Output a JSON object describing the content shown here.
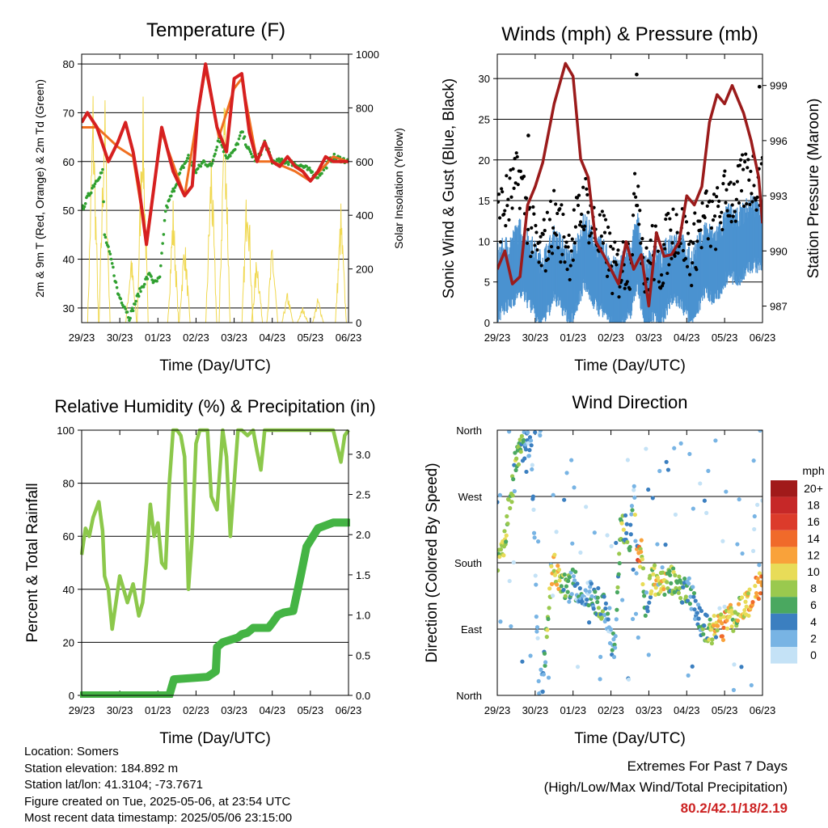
{
  "footer": {
    "location": "Location: Somers",
    "elevation": "Station elevation: 184.892 m",
    "latlon": "Station lat/lon: 41.3104; -73.7671",
    "created": "Figure created on Tue, 2025-05-06, at 23:54 UTC",
    "latest": "Most recent data timestamp: 2025/05/06 23:15:00"
  },
  "extremes": {
    "title": "Extremes For Past 7 Days",
    "subtitle": "(High/Low/Max Wind/Total Precipitation)",
    "values": "80.2/42.1/18/2.19",
    "color": "#cc2222"
  },
  "chart_data": [
    {
      "type": "line",
      "title": "Temperature (F)",
      "xlabel": "Time (Day/UTC)",
      "ylabel": "2m & 9m T (Red, Orange) & 2m Td (Green)",
      "y2label": "Solar Insolation (Yellow)",
      "x_ticks": [
        "29/23",
        "30/23",
        "01/23",
        "02/23",
        "03/23",
        "04/23",
        "05/23",
        "06/23"
      ],
      "ylim": [
        27,
        82
      ],
      "yticks": [
        30,
        40,
        50,
        60,
        70,
        80
      ],
      "y2lim": [
        0,
        1000
      ],
      "y2ticks": [
        0,
        200,
        400,
        600,
        800,
        1000
      ],
      "series": [
        {
          "name": "2m T",
          "color": "#d62020",
          "x": [
            0,
            0.15,
            0.4,
            0.7,
            0.95,
            1.15,
            1.35,
            1.5,
            1.7,
            1.9,
            2.1,
            2.4,
            2.7,
            2.9,
            3.05,
            3.25,
            3.55,
            3.8,
            4.0,
            4.2,
            4.4,
            4.6,
            4.8,
            5.0,
            5.2,
            5.4,
            5.6,
            5.8,
            6.0,
            6.2,
            6.4,
            6.6,
            7.0
          ],
          "y": [
            68,
            70,
            67,
            60,
            64,
            68,
            62,
            55,
            43,
            55,
            67,
            58,
            53,
            55,
            70,
            80,
            67,
            62,
            77,
            78,
            66,
            60,
            64,
            60,
            59,
            61,
            59,
            58,
            56,
            58,
            61,
            60,
            60
          ]
        },
        {
          "name": "9m T",
          "color": "#f07020",
          "x": [
            0,
            0.4,
            0.95,
            1.35,
            1.7,
            2.1,
            2.7,
            3.05,
            3.25,
            3.6,
            4.0,
            4.2,
            4.6,
            5.0,
            5.6,
            6.0,
            6.6,
            7.0
          ],
          "y": [
            67,
            67,
            63,
            61,
            44,
            66,
            53,
            70,
            79,
            65,
            75,
            77,
            60,
            60,
            58,
            56,
            61,
            60
          ]
        },
        {
          "name": "2m Td",
          "color": "#30a030",
          "x": [
            0,
            0.3,
            0.45,
            0.55,
            0.6,
            0.8,
            0.95,
            1.15,
            1.25,
            1.5,
            1.7,
            1.8,
            1.9,
            2.05,
            2.2,
            2.4,
            2.6,
            2.8,
            3.0,
            3.2,
            3.4,
            3.6,
            3.8,
            4.0,
            4.2,
            4.4,
            4.6,
            4.8,
            5.0,
            5.4,
            5.8,
            6.2,
            6.6,
            7.0
          ],
          "y": [
            50,
            55,
            57,
            58,
            45,
            39,
            33,
            30,
            28,
            33,
            36,
            37,
            35,
            36,
            50,
            54,
            58,
            61,
            58,
            60,
            59,
            65,
            61,
            62,
            66,
            62,
            60,
            64,
            60,
            60,
            59,
            57,
            61,
            60
          ]
        },
        {
          "name": "Solar Insolation",
          "color": "#f0d850",
          "axis": "y2",
          "peaks_x": [
            0.3,
            0.6,
            1.3,
            1.6,
            2.4,
            2.7,
            3.4,
            3.75,
            4.35,
            4.6,
            5.0,
            5.4,
            5.8,
            6.2,
            6.8
          ],
          "peaks_y": [
            920,
            930,
            280,
            920,
            480,
            350,
            690,
            980,
            640,
            280,
            320,
            120,
            60,
            100,
            460
          ]
        }
      ]
    },
    {
      "type": "scatter",
      "title": "Winds (mph) & Pressure (mb)",
      "xlabel": "Time (Day/UTC)",
      "ylabel": "Sonic Wind & Gust (Blue, Black)",
      "y2label": "Station Pressure (Maroon)",
      "x_ticks": [
        "29/23",
        "30/23",
        "01/23",
        "02/23",
        "03/23",
        "04/23",
        "05/23",
        "06/23"
      ],
      "ylim": [
        0,
        33
      ],
      "yticks": [
        0,
        5,
        10,
        15,
        20,
        25,
        30
      ],
      "y2lim": [
        986.1,
        1000.7
      ],
      "y2ticks": [
        987,
        990,
        993,
        996,
        999
      ],
      "wind_level": {
        "x": [
          0,
          0.3,
          0.6,
          0.9,
          1.1,
          1.3,
          1.5,
          1.7,
          1.9,
          2.1,
          2.3,
          2.6,
          2.9,
          3.1,
          3.3,
          3.5,
          3.7,
          3.9,
          4.1,
          4.3,
          4.5,
          4.7,
          4.9,
          5.1,
          5.3,
          5.5,
          5.7,
          5.9,
          6.1,
          6.3,
          6.5,
          6.7,
          7.0
        ],
        "y": [
          5,
          6,
          8,
          6,
          4,
          5,
          7,
          6,
          4,
          6,
          9,
          6,
          5,
          3,
          4,
          5,
          9,
          3,
          5,
          4,
          6,
          7,
          6,
          4,
          6,
          8,
          7,
          8,
          10,
          9,
          10,
          11,
          11
        ]
      },
      "gust_level": {
        "x": [
          0,
          0.3,
          0.6,
          0.9,
          1.1,
          1.3,
          1.5,
          1.7,
          1.9,
          2.1,
          2.3,
          2.6,
          2.9,
          3.1,
          3.3,
          3.5,
          3.7,
          3.9,
          4.1,
          4.3,
          4.5,
          4.7,
          4.9,
          5.1,
          5.3,
          5.5,
          5.7,
          5.9,
          6.1,
          6.3,
          6.5,
          6.7,
          7.0
        ],
        "y": [
          13,
          15,
          18,
          11,
          8,
          10,
          13,
          11,
          9,
          12,
          15,
          11,
          9,
          6,
          7,
          8,
          18,
          5,
          9,
          7,
          10,
          12,
          11,
          8,
          11,
          13,
          12,
          14,
          16,
          15,
          17,
          18,
          17
        ]
      },
      "pressure": {
        "color": "#9b1b1b",
        "x": [
          0,
          0.2,
          0.4,
          0.6,
          0.8,
          1.0,
          1.2,
          1.5,
          1.8,
          2.0,
          2.2,
          2.4,
          2.6,
          2.8,
          3.0,
          3.2,
          3.4,
          3.6,
          3.8,
          4.0,
          4.2,
          4.4,
          4.6,
          4.8,
          5.0,
          5.2,
          5.4,
          5.6,
          5.8,
          6.0,
          6.2,
          6.5,
          6.7,
          6.9,
          7.0
        ],
        "y": [
          989,
          990,
          988.2,
          988.6,
          992.5,
          993.5,
          994.8,
          998,
          1000.2,
          999.5,
          995,
          994,
          990.5,
          989.8,
          989,
          988.2,
          990.5,
          989,
          989.8,
          987,
          991,
          989.7,
          989.8,
          990.5,
          993,
          992.5,
          993.5,
          997,
          998.5,
          998,
          999,
          997.5,
          996,
          994,
          991.5
        ]
      },
      "extreme_gusts": [
        {
          "x": 3.68,
          "y": 30.5
        },
        {
          "x": 6.92,
          "y": 29
        },
        {
          "x": 0.82,
          "y": 23
        }
      ]
    },
    {
      "type": "line",
      "title": "Relative Humidity (%) & Precipitation (in)",
      "xlabel": "Time (Day/UTC)",
      "ylabel": "Percent & Total Rainfall",
      "x_ticks": [
        "29/23",
        "30/23",
        "01/23",
        "02/23",
        "03/23",
        "04/23",
        "05/23",
        "06/23"
      ],
      "ylim": [
        0,
        100
      ],
      "yticks": [
        0,
        20,
        40,
        60,
        80,
        100
      ],
      "y2lim": [
        0,
        3.3
      ],
      "y2ticks": [
        0.0,
        0.5,
        1.0,
        1.5,
        2.0,
        2.5,
        3.0
      ],
      "series": [
        {
          "name": "Relative Humidity",
          "color": "#8cc84b",
          "x": [
            0,
            0.1,
            0.2,
            0.3,
            0.45,
            0.55,
            0.6,
            0.7,
            0.8,
            0.9,
            1.0,
            1.1,
            1.2,
            1.35,
            1.5,
            1.6,
            1.7,
            1.8,
            1.9,
            2.0,
            2.1,
            2.2,
            2.3,
            2.4,
            2.5,
            2.6,
            2.7,
            2.8,
            2.9,
            3.0,
            3.1,
            3.2,
            3.3,
            3.4,
            3.55,
            3.7,
            3.8,
            3.9,
            4.1,
            4.2,
            4.35,
            4.5,
            4.6,
            4.7,
            4.8,
            4.9,
            5.0,
            5.4,
            5.8,
            6.2,
            6.6,
            6.8,
            6.9,
            7.0
          ],
          "y": [
            53,
            63,
            60,
            67,
            73,
            62,
            45,
            40,
            25,
            35,
            45,
            40,
            35,
            42,
            30,
            35,
            50,
            72,
            60,
            65,
            50,
            48,
            80,
            100,
            100,
            98,
            90,
            40,
            60,
            95,
            100,
            100,
            100,
            75,
            70,
            100,
            90,
            60,
            100,
            100,
            98,
            100,
            92,
            85,
            100,
            100,
            100,
            100,
            100,
            100,
            100,
            88,
            98,
            100
          ]
        },
        {
          "name": "Total Rainfall",
          "color": "#44b444",
          "axis": "y2",
          "x": [
            0,
            2.3,
            2.42,
            3.3,
            3.52,
            3.55,
            3.7,
            4.1,
            4.2,
            4.35,
            4.5,
            4.9,
            5.0,
            5.15,
            5.3,
            5.55,
            5.75,
            5.9,
            6.2,
            6.6,
            7.0
          ],
          "y": [
            0,
            0,
            0.2,
            0.23,
            0.3,
            0.6,
            0.66,
            0.72,
            0.76,
            0.78,
            0.84,
            0.84,
            0.9,
            1.0,
            1.03,
            1.05,
            1.5,
            1.85,
            2.08,
            2.15,
            2.15
          ]
        }
      ]
    },
    {
      "type": "scatter",
      "title": "Wind Direction",
      "xlabel": "Time (Day/UTC)",
      "ylabel": "Direction (Colored By Speed)",
      "x_ticks": [
        "29/23",
        "30/23",
        "01/23",
        "02/23",
        "03/23",
        "04/23",
        "05/23",
        "06/23"
      ],
      "ytick_labels": [
        "North",
        "East",
        "South",
        "West",
        "North"
      ],
      "ylim": [
        0,
        360
      ],
      "colorbar": {
        "title": "mph",
        "labels": [
          "20+",
          "18",
          "16",
          "14",
          "12",
          "10",
          "8",
          "6",
          "4",
          "2",
          "0"
        ],
        "colors": [
          "#a11a1a",
          "#c62828",
          "#dc3b2b",
          "#f06a2a",
          "#f9a23a",
          "#e8dc58",
          "#9ac94e",
          "#4aa860",
          "#3b7fc0",
          "#78b4e4",
          "#c4e2f6"
        ]
      },
      "direction_track": {
        "x": [
          0,
          0.2,
          0.35,
          0.5,
          0.7,
          0.9,
          1.1,
          1.2,
          1.45,
          1.6,
          1.7,
          1.85,
          2.0,
          2.2,
          2.5,
          2.8,
          2.95,
          3.1,
          3.25,
          3.4,
          3.5,
          3.6,
          3.7,
          3.8,
          3.9,
          4.1,
          4.3,
          4.5,
          4.8,
          5.1,
          5.4,
          5.7,
          6.0,
          6.3,
          6.6,
          6.9,
          7.0
        ],
        "y": [
          180,
          215,
          270,
          320,
          340,
          335,
          10,
          20,
          175,
          165,
          150,
          140,
          160,
          130,
          135,
          120,
          90,
          60,
          220,
          230,
          200,
          280,
          180,
          200,
          120,
          160,
          150,
          160,
          145,
          140,
          95,
          90,
          95,
          110,
          120,
          150,
          160
        ],
        "speed": [
          8,
          10,
          6,
          8,
          4,
          2,
          2,
          3,
          12,
          10,
          8,
          6,
          4,
          3,
          4,
          6,
          2,
          3,
          8,
          6,
          4,
          3,
          14,
          10,
          4,
          8,
          10,
          8,
          6,
          4,
          4,
          10,
          12,
          8,
          10,
          12,
          14
        ]
      }
    }
  ]
}
